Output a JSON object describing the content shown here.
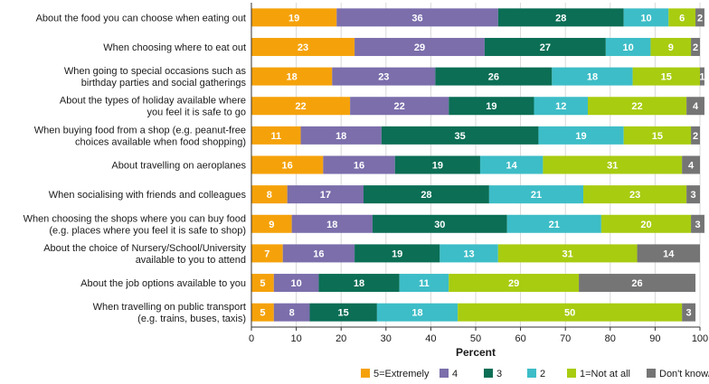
{
  "chart_data": {
    "type": "bar",
    "orientation": "horizontal",
    "stacked": true,
    "title": "",
    "xlabel": "Percent",
    "ylabel": "",
    "xlim": [
      0,
      100
    ],
    "xticks": [
      0,
      10,
      20,
      30,
      40,
      50,
      60,
      70,
      80,
      90,
      100
    ],
    "grid": true,
    "legend_position": "bottom",
    "categories": [
      [
        "About the food you can choose when eating out"
      ],
      [
        "When choosing where to eat out"
      ],
      [
        "When going to special occasions such as",
        "birthday parties and social gatherings"
      ],
      [
        "About the types of holiday available where",
        "you feel it is safe to go"
      ],
      [
        "When buying food from a shop (e.g. peanut-free",
        "choices available when food shopping)"
      ],
      [
        "About travelling on aeroplanes"
      ],
      [
        "When socialising with friends and colleagues"
      ],
      [
        "When choosing the shops where you can buy food",
        "(e.g. places where you feel it is safe to shop)"
      ],
      [
        "About the choice of Nursery/School/University",
        "available to you to attend"
      ],
      [
        "About the job options available to you"
      ],
      [
        "When travelling on public transport",
        "(e.g. trains, buses, taxis)"
      ]
    ],
    "series": [
      {
        "name": "5=Extremely",
        "color": "#f5a20a",
        "values": [
          19,
          23,
          18,
          22,
          11,
          16,
          8,
          9,
          7,
          5,
          5
        ]
      },
      {
        "name": "4",
        "color": "#7b6eab",
        "values": [
          36,
          29,
          23,
          22,
          18,
          16,
          17,
          18,
          16,
          10,
          8
        ]
      },
      {
        "name": "3",
        "color": "#0b6e55",
        "values": [
          28,
          27,
          26,
          19,
          35,
          19,
          28,
          30,
          19,
          18,
          15
        ]
      },
      {
        "name": "2",
        "color": "#3dbdc7",
        "values": [
          10,
          10,
          18,
          12,
          19,
          14,
          21,
          21,
          13,
          11,
          18
        ]
      },
      {
        "name": "1=Not at all",
        "color": "#a8cc10",
        "values": [
          6,
          9,
          15,
          22,
          15,
          31,
          23,
          20,
          31,
          29,
          50
        ]
      },
      {
        "name": "Don't know/NA",
        "color": "#757575",
        "values": [
          2,
          2,
          1,
          4,
          2,
          4,
          3,
          3,
          14,
          26,
          3
        ]
      }
    ]
  }
}
